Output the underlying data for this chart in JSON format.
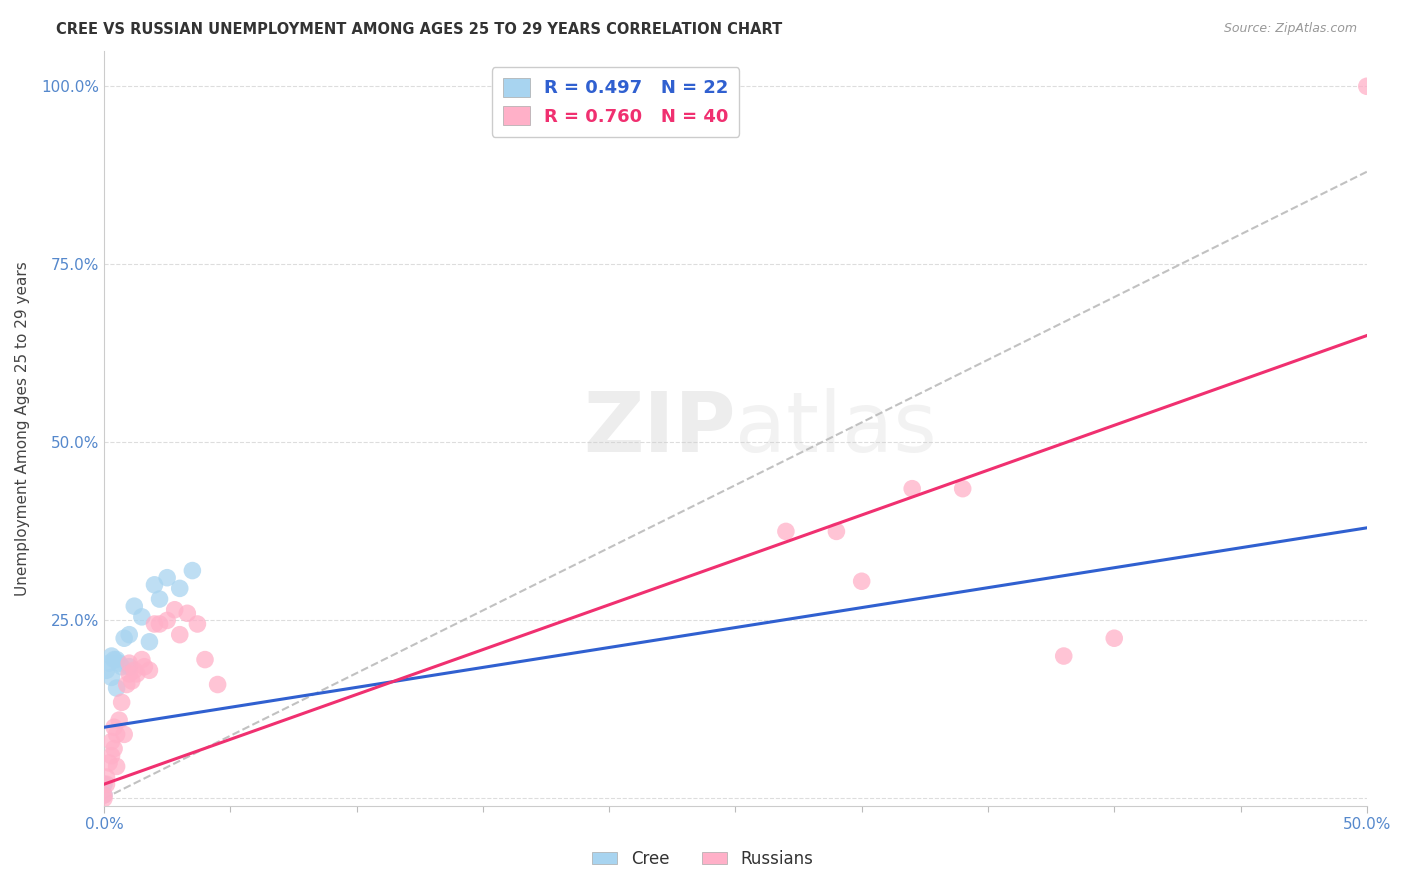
{
  "title": "CREE VS RUSSIAN UNEMPLOYMENT AMONG AGES 25 TO 29 YEARS CORRELATION CHART",
  "source": "Source: ZipAtlas.com",
  "xlim": [
    0.0,
    0.5
  ],
  "ylim": [
    -0.01,
    1.05
  ],
  "ylabel": "Unemployment Among Ages 25 to 29 years",
  "cree_R": 0.497,
  "cree_N": 22,
  "russian_R": 0.76,
  "russian_N": 40,
  "cree_color": "#A8D4F0",
  "russian_color": "#FFB0C8",
  "cree_line_color": "#3060D0",
  "russian_line_color": "#F03070",
  "ref_line_color": "#BBBBBB",
  "watermark_zip": "ZIP",
  "watermark_atlas": "atlas",
  "watermark_color": "#CCCCCC",
  "background_color": "#FFFFFF",
  "grid_color": "#DDDDDD",
  "tick_color": "#5588CC",
  "cree_points_x": [
    0.0,
    0.0,
    0.001,
    0.002,
    0.003,
    0.003,
    0.004,
    0.005,
    0.005,
    0.006,
    0.007,
    0.008,
    0.01,
    0.01,
    0.012,
    0.015,
    0.018,
    0.02,
    0.022,
    0.025,
    0.03,
    0.035
  ],
  "cree_points_y": [
    0.005,
    0.02,
    0.18,
    0.19,
    0.17,
    0.2,
    0.195,
    0.195,
    0.155,
    0.19,
    0.185,
    0.225,
    0.185,
    0.23,
    0.27,
    0.255,
    0.22,
    0.3,
    0.28,
    0.31,
    0.295,
    0.32
  ],
  "russian_points_x": [
    0.0,
    0.0,
    0.001,
    0.001,
    0.002,
    0.003,
    0.003,
    0.004,
    0.004,
    0.005,
    0.005,
    0.006,
    0.007,
    0.008,
    0.009,
    0.01,
    0.01,
    0.011,
    0.012,
    0.013,
    0.015,
    0.016,
    0.018,
    0.02,
    0.022,
    0.025,
    0.028,
    0.03,
    0.033,
    0.037,
    0.04,
    0.045,
    0.27,
    0.29,
    0.3,
    0.32,
    0.34,
    0.38,
    0.4,
    0.5
  ],
  "russian_points_y": [
    0.0,
    0.005,
    0.03,
    0.02,
    0.05,
    0.06,
    0.08,
    0.07,
    0.1,
    0.09,
    0.045,
    0.11,
    0.135,
    0.09,
    0.16,
    0.175,
    0.19,
    0.165,
    0.18,
    0.175,
    0.195,
    0.185,
    0.18,
    0.245,
    0.245,
    0.25,
    0.265,
    0.23,
    0.26,
    0.245,
    0.195,
    0.16,
    0.375,
    0.375,
    0.305,
    0.435,
    0.435,
    0.2,
    0.225,
    1.0
  ],
  "cree_line_x0": 0.0,
  "cree_line_y0": 0.1,
  "cree_line_x1": 0.5,
  "cree_line_y1": 0.38,
  "russian_line_x0": 0.0,
  "russian_line_y0": 0.02,
  "russian_line_x1": 0.5,
  "russian_line_y1": 0.65,
  "ref_line_x0": 0.0,
  "ref_line_y0": 0.0,
  "ref_line_x1": 0.5,
  "ref_line_y1": 0.88
}
